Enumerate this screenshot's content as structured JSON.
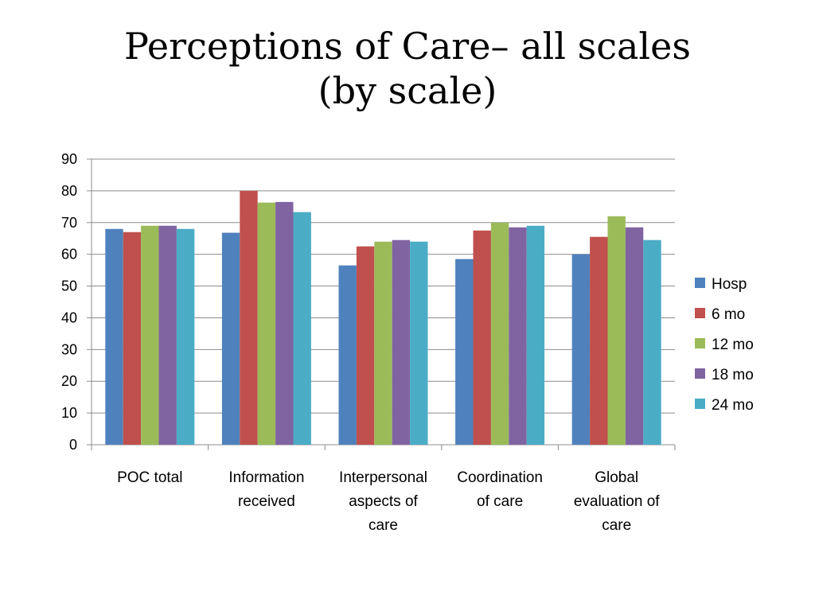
{
  "slide": {
    "title_line1": "Perceptions of Care– all scales",
    "title_line2": "(by scale)"
  },
  "chart_data": {
    "type": "bar",
    "categories": [
      [
        "POC total"
      ],
      [
        "Information",
        "received"
      ],
      [
        "Interpersonal",
        "aspects of",
        "care"
      ],
      [
        "Coordination",
        "of care"
      ],
      [
        "Global",
        "evaluation of",
        "care"
      ]
    ],
    "series": [
      {
        "name": "Hosp",
        "color": "#4F81BD",
        "values": [
          68,
          66.8,
          56.5,
          58.5,
          60
        ]
      },
      {
        "name": "6 mo",
        "color": "#C0504D",
        "values": [
          67,
          80,
          62.5,
          67.5,
          65.5
        ]
      },
      {
        "name": "12 mo",
        "color": "#9BBB59",
        "values": [
          69,
          76.3,
          64,
          70,
          72
        ]
      },
      {
        "name": "18 mo",
        "color": "#8064A2",
        "values": [
          69,
          76.5,
          64.5,
          68.5,
          68.5
        ]
      },
      {
        "name": "24 mo",
        "color": "#4BACC6",
        "values": [
          68,
          73.3,
          64,
          69,
          64.5
        ]
      }
    ],
    "ylim": [
      0,
      90
    ],
    "yticks": [
      "0",
      "10",
      "20",
      "30",
      "40",
      "50",
      "60",
      "70",
      "80",
      "90"
    ],
    "grid": true,
    "legend_position": "right"
  }
}
